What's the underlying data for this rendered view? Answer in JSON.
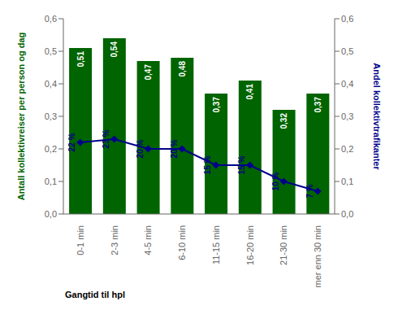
{
  "chart_data": {
    "type": "bar",
    "xlabel": "Gangtid til hpl",
    "ylabel": "Antall kollektivreiser per person og dag",
    "y2label": "Andel kollektivtrafikanter",
    "categories": [
      "0-1 min",
      "2-3 min",
      "4-5 min",
      "6-10 min",
      "11-15 min",
      "16-20 min",
      "21-30 min",
      "mer enn 30 min"
    ],
    "series": [
      {
        "name": "Antall kollektivreiser per person og dag",
        "type": "bar",
        "color": "#006400",
        "values": [
          0.51,
          0.54,
          0.47,
          0.48,
          0.37,
          0.41,
          0.32,
          0.37
        ],
        "value_labels": [
          "0,51",
          "0,54",
          "0,47",
          "0,48",
          "0,37",
          "0,41",
          "0,32",
          "0,37"
        ]
      },
      {
        "name": "Andel kollektivtrafikanter",
        "type": "line",
        "axis": "y2",
        "color": "#00008B",
        "marker": "diamond",
        "values": [
          0.22,
          0.23,
          0.2,
          0.2,
          0.15,
          0.15,
          0.1,
          0.07
        ],
        "value_labels": [
          "22 %",
          "23 %",
          "20 %",
          "20 %",
          "15 %",
          "15 %",
          "10 %",
          "7 %"
        ]
      }
    ],
    "ylim": [
      0.0,
      0.6
    ],
    "yticks": [
      {
        "value": 0.0,
        "label": "0,0"
      },
      {
        "value": 0.1,
        "label": "0,1"
      },
      {
        "value": 0.2,
        "label": "0,2"
      },
      {
        "value": 0.3,
        "label": "0,3"
      },
      {
        "value": 0.4,
        "label": "0,4"
      },
      {
        "value": 0.5,
        "label": "0,5"
      },
      {
        "value": 0.6,
        "label": "0,6"
      }
    ],
    "y2lim": [
      0.0,
      0.6
    ],
    "y2ticks": [
      {
        "value": 0.0,
        "label": "0,0"
      },
      {
        "value": 0.1,
        "label": "0,1"
      },
      {
        "value": 0.2,
        "label": "0,2"
      },
      {
        "value": 0.3,
        "label": "0,3"
      },
      {
        "value": 0.4,
        "label": "0,4"
      },
      {
        "value": 0.5,
        "label": "0,5"
      },
      {
        "value": 0.6,
        "label": "0,6"
      }
    ],
    "data_labels": true,
    "grid": false
  }
}
